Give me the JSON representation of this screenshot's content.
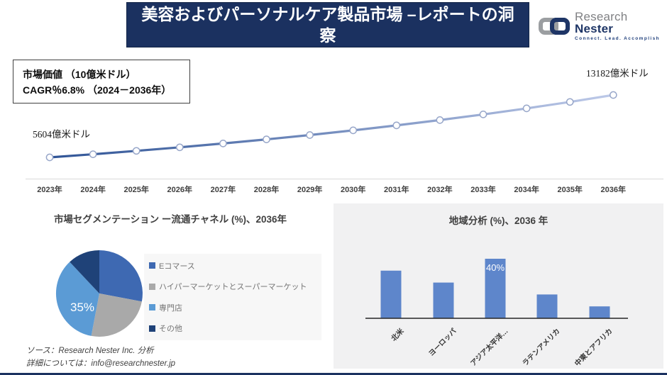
{
  "header": {
    "title": "美容およびパーソナルケア製品市場 –レポートの洞察"
  },
  "logo": {
    "brand_primary": "Research",
    "brand_secondary": "Nester",
    "tagline": "Connect. Lead. Accomplish"
  },
  "info_box": {
    "line1": "市場価値 （10億米ドル）",
    "line2": "CAGR％6.8% （2024－2036年）"
  },
  "line_chart": {
    "start_label": "5604億米ドル",
    "end_label": "13182億米ドル",
    "chart_data": {
      "type": "line",
      "x": [
        "2023年",
        "2024年",
        "2025年",
        "2026年",
        "2027年",
        "2028年",
        "2029年",
        "2030年",
        "2031年",
        "2032年",
        "2033年",
        "2034年",
        "2035年",
        "2036年"
      ],
      "values": [
        5604,
        5985,
        6392,
        6827,
        7291,
        7787,
        8316,
        8882,
        9486,
        10131,
        10820,
        11556,
        12342,
        13182
      ],
      "unit": "億米ドル",
      "grid": false,
      "marker": "open-circle",
      "line_gradient": [
        "#2F5496",
        "#BDC9E8"
      ]
    }
  },
  "pie_section": {
    "title": "市場セグメンテーション ー流通チャネル (%)、2036年",
    "chart_data": {
      "type": "pie",
      "labels": [
        "Eコマース",
        "ハイパーマーケットとスーパーマーケット",
        "専門店",
        "その他"
      ],
      "values": [
        28,
        25,
        35,
        12
      ],
      "colors": [
        "#3E69B2",
        "#A9A9A9",
        "#5B9BD5",
        "#1F4278"
      ],
      "data_label": {
        "slice": "専門店",
        "text": "35%"
      },
      "legend_position": "right"
    }
  },
  "bar_section": {
    "title": "地域分析 (%)、2036 年",
    "chart_data": {
      "type": "bar",
      "categories": [
        "北米",
        "ヨーロッパ",
        "アジア太平洋…",
        "ラテンアメリカ",
        "中東とアフリカ"
      ],
      "values": [
        32,
        24,
        40,
        16,
        8
      ],
      "ylim": [
        0,
        45
      ],
      "grid": false,
      "bar_color": "#5E86CB",
      "data_label": {
        "category": "アジア太平洋…",
        "text": "40%"
      }
    }
  },
  "footer": {
    "source": "ソース：Research Nester Inc. 分析",
    "contact": "詳細については：info@researchnester.jp"
  },
  "theme": {
    "banner_navy": "#1B3160",
    "panel_gray": "#F1F1F2",
    "marker_stroke": "#97A6C9",
    "legend_text_gray": "#757575"
  }
}
